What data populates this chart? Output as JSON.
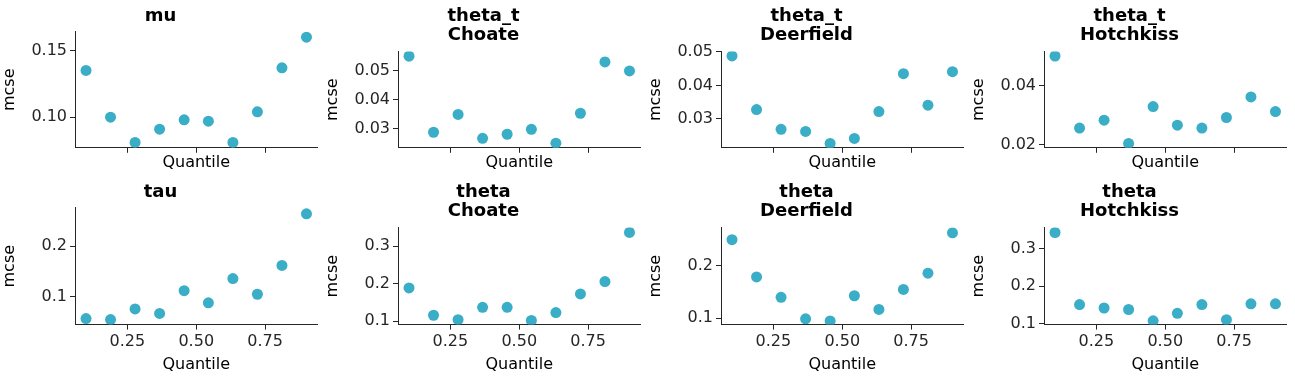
{
  "chart_data": [
    {
      "type": "scatter",
      "title": "mu",
      "xlabel": "Quantile",
      "ylabel": "mcse",
      "x": [
        0.1,
        0.189,
        0.278,
        0.367,
        0.456,
        0.544,
        0.633,
        0.722,
        0.811,
        0.9
      ],
      "series": [
        {
          "color": "#3aadc7",
          "values": [
            0.135,
            0.1,
            0.081,
            0.091,
            0.098,
            0.097,
            0.081,
            0.104,
            0.137,
            0.16
          ]
        }
      ],
      "xlim": [
        0.06,
        0.94
      ],
      "xticks": [
        {
          "value": 0.25,
          "label": null
        },
        {
          "value": 0.5,
          "label": null
        },
        {
          "value": 0.75,
          "label": null
        }
      ],
      "ylim": [
        0.077,
        0.164
      ],
      "yticks": [
        {
          "value": 0.1,
          "label": "0.10"
        },
        0.15
      ],
      "tick_labels": "y",
      "grid": false,
      "marker": "circle",
      "legend": false
    },
    {
      "type": "scatter",
      "title": "theta_t\nChoate",
      "xlabel": "Quantile",
      "ylabel": "mcse",
      "x": [
        0.1,
        0.189,
        0.278,
        0.367,
        0.456,
        0.544,
        0.633,
        0.722,
        0.811,
        0.9
      ],
      "series": [
        {
          "color": "#3aadc7",
          "values": [
            0.0551,
            0.0287,
            0.0349,
            0.0266,
            0.028,
            0.0297,
            0.0249,
            0.0353,
            0.0531,
            0.05
          ]
        }
      ],
      "xlim": [
        0.06,
        0.94
      ],
      "xticks": [
        {
          "value": 0.25,
          "label": null
        },
        {
          "value": 0.5,
          "label": null
        },
        {
          "value": 0.75,
          "label": null
        }
      ],
      "ylim": [
        0.0233,
        0.0567
      ],
      "yticks": [
        0.03,
        0.04,
        0.05
      ],
      "tick_labels": "y",
      "grid": false,
      "marker": "circle",
      "legend": false
    },
    {
      "type": "scatter",
      "title": "theta_t\nDeerfield",
      "xlabel": "Quantile",
      "ylabel": "mcse",
      "x": [
        0.1,
        0.189,
        0.278,
        0.367,
        0.456,
        0.544,
        0.633,
        0.722,
        0.811,
        0.9
      ],
      "series": [
        {
          "color": "#3aadc7",
          "values": [
            0.0488,
            0.0328,
            0.0269,
            0.0263,
            0.0227,
            0.0242,
            0.0322,
            0.0435,
            0.0341,
            0.0441
          ]
        }
      ],
      "xlim": [
        0.06,
        0.94
      ],
      "xticks": [
        {
          "value": 0.25,
          "label": null
        },
        {
          "value": 0.5,
          "label": null
        },
        {
          "value": 0.75,
          "label": null
        }
      ],
      "ylim": [
        0.0214,
        0.0501
      ],
      "yticks": [
        0.03,
        0.04,
        0.05
      ],
      "tick_labels": "y",
      "grid": false,
      "marker": "circle",
      "legend": false
    },
    {
      "type": "scatter",
      "title": "theta_t\nHotchkiss",
      "xlabel": "Quantile",
      "ylabel": "mcse",
      "x": [
        0.1,
        0.189,
        0.278,
        0.367,
        0.456,
        0.544,
        0.633,
        0.722,
        0.811,
        0.9
      ],
      "series": [
        {
          "color": "#3aadc7",
          "values": [
            0.0501,
            0.0256,
            0.0283,
            0.0204,
            0.0329,
            0.0266,
            0.0256,
            0.0292,
            0.0362,
            0.0312
          ]
        }
      ],
      "xlim": [
        0.06,
        0.94
      ],
      "xticks": [
        {
          "value": 0.25,
          "label": null
        },
        {
          "value": 0.5,
          "label": null
        },
        {
          "value": 0.75,
          "label": null
        }
      ],
      "ylim": [
        0.0189,
        0.0516
      ],
      "yticks": [
        0.02,
        0.04
      ],
      "tick_labels": "y",
      "grid": false,
      "marker": "circle",
      "legend": false
    },
    {
      "type": "scatter",
      "title": "tau",
      "xlabel": "Quantile",
      "ylabel": "mcse",
      "x": [
        0.1,
        0.189,
        0.278,
        0.367,
        0.456,
        0.544,
        0.633,
        0.722,
        0.811,
        0.9
      ],
      "series": [
        {
          "color": "#3aadc7",
          "values": [
            0.057,
            0.055,
            0.076,
            0.067,
            0.112,
            0.088,
            0.136,
            0.105,
            0.162,
            0.264
          ]
        }
      ],
      "xlim": [
        0.06,
        0.94
      ],
      "xticks": [
        {
          "value": 0.25,
          "label": "0.25"
        },
        {
          "value": 0.5,
          "label": "0.50"
        },
        {
          "value": 0.75,
          "label": "0.75"
        }
      ],
      "ylim": [
        0.045,
        0.276
      ],
      "yticks": [
        0.1,
        0.2
      ],
      "grid": false,
      "marker": "circle",
      "legend": false
    },
    {
      "type": "scatter",
      "title": "theta\nChoate",
      "xlabel": "Quantile",
      "ylabel": "mcse",
      "x": [
        0.1,
        0.189,
        0.278,
        0.367,
        0.456,
        0.544,
        0.633,
        0.722,
        0.811,
        0.9
      ],
      "series": [
        {
          "color": "#3aadc7",
          "values": [
            0.189,
            0.116,
            0.104,
            0.137,
            0.137,
            0.102,
            0.123,
            0.173,
            0.206,
            0.337
          ]
        }
      ],
      "xlim": [
        0.06,
        0.94
      ],
      "xticks": [
        {
          "value": 0.25,
          "label": "0.25"
        },
        {
          "value": 0.5,
          "label": "0.50"
        },
        {
          "value": 0.75,
          "label": "0.75"
        }
      ],
      "ylim": [
        0.091,
        0.35
      ],
      "yticks": [
        0.1,
        0.2,
        0.3
      ],
      "grid": false,
      "marker": "circle",
      "legend": false
    },
    {
      "type": "scatter",
      "title": "theta\nDeerfield",
      "xlabel": "Quantile",
      "ylabel": "mcse",
      "x": [
        0.1,
        0.189,
        0.278,
        0.367,
        0.456,
        0.544,
        0.633,
        0.722,
        0.811,
        0.9
      ],
      "series": [
        {
          "color": "#3aadc7",
          "values": [
            0.25,
            0.179,
            0.14,
            0.099,
            0.095,
            0.143,
            0.117,
            0.155,
            0.186,
            0.263
          ]
        }
      ],
      "xlim": [
        0.06,
        0.94
      ],
      "xticks": [
        {
          "value": 0.25,
          "label": "0.25"
        },
        {
          "value": 0.5,
          "label": "0.50"
        },
        {
          "value": 0.75,
          "label": "0.75"
        }
      ],
      "ylim": [
        0.088,
        0.273
      ],
      "yticks": [
        0.1,
        0.2
      ],
      "grid": false,
      "marker": "circle",
      "legend": false
    },
    {
      "type": "scatter",
      "title": "theta\nHotchkiss",
      "xlabel": "Quantile",
      "ylabel": "mcse",
      "x": [
        0.1,
        0.189,
        0.278,
        0.367,
        0.456,
        0.544,
        0.633,
        0.722,
        0.811,
        0.9
      ],
      "series": [
        {
          "color": "#3aadc7",
          "values": [
            0.342,
            0.151,
            0.142,
            0.138,
            0.108,
            0.128,
            0.151,
            0.111,
            0.153,
            0.153
          ]
        }
      ],
      "xlim": [
        0.06,
        0.94
      ],
      "xticks": [
        {
          "value": 0.25,
          "label": "0.25"
        },
        {
          "value": 0.5,
          "label": "0.50"
        },
        {
          "value": 0.75,
          "label": "0.75"
        }
      ],
      "ylim": [
        0.098,
        0.355
      ],
      "yticks": [
        0.1,
        0.2,
        0.3
      ],
      "grid": false,
      "marker": "circle",
      "legend": false
    }
  ]
}
